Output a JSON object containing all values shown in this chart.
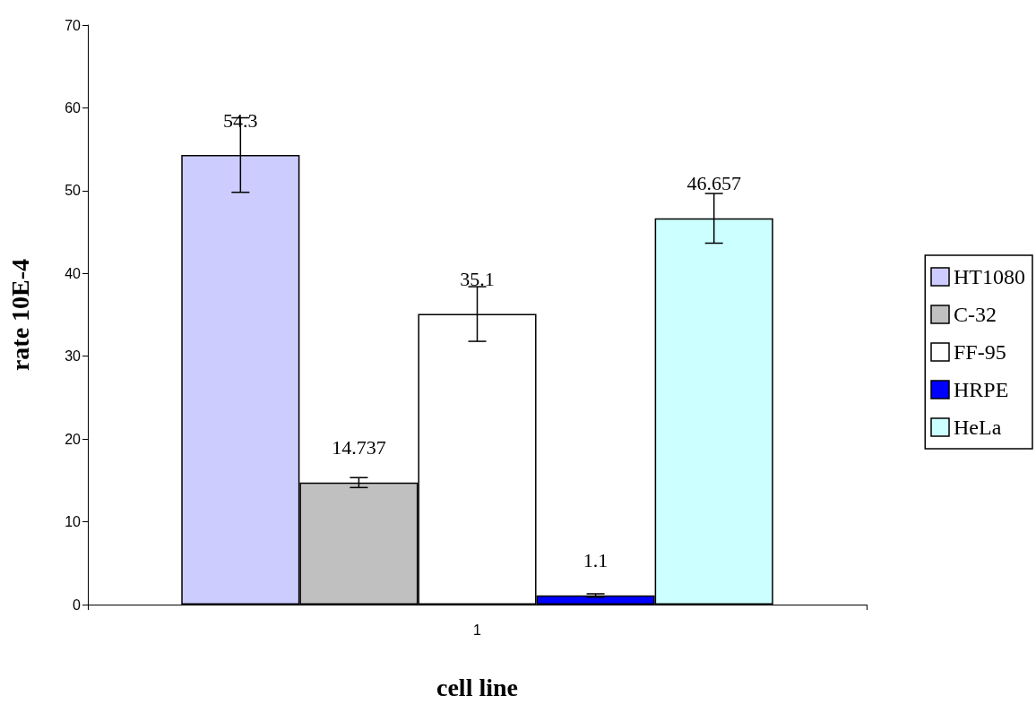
{
  "chart_data": {
    "type": "bar",
    "xlabel": "cell line",
    "ylabel": "rate 10E-4",
    "categories": [
      "1"
    ],
    "series": [
      {
        "name": "HT1080",
        "color": "#ccccff",
        "values": [
          54.3
        ],
        "errors": [
          4.5
        ]
      },
      {
        "name": "C-32",
        "color": "#c0c0c0",
        "values": [
          14.737
        ],
        "errors": [
          0.6
        ]
      },
      {
        "name": "FF-95",
        "color": "#ffffff",
        "values": [
          35.1
        ],
        "errors": [
          3.3
        ]
      },
      {
        "name": "HRPE",
        "color": "#0000ff",
        "values": [
          1.1
        ],
        "errors": [
          0.2
        ]
      },
      {
        "name": "HeLa",
        "color": "#ccffff",
        "values": [
          46.657
        ],
        "errors": [
          3
        ]
      }
    ],
    "ylim": [
      0,
      70
    ],
    "yticks": [
      0,
      10,
      20,
      30,
      40,
      50,
      60,
      70
    ],
    "grid": false,
    "legend": "right",
    "data_labels": true
  }
}
